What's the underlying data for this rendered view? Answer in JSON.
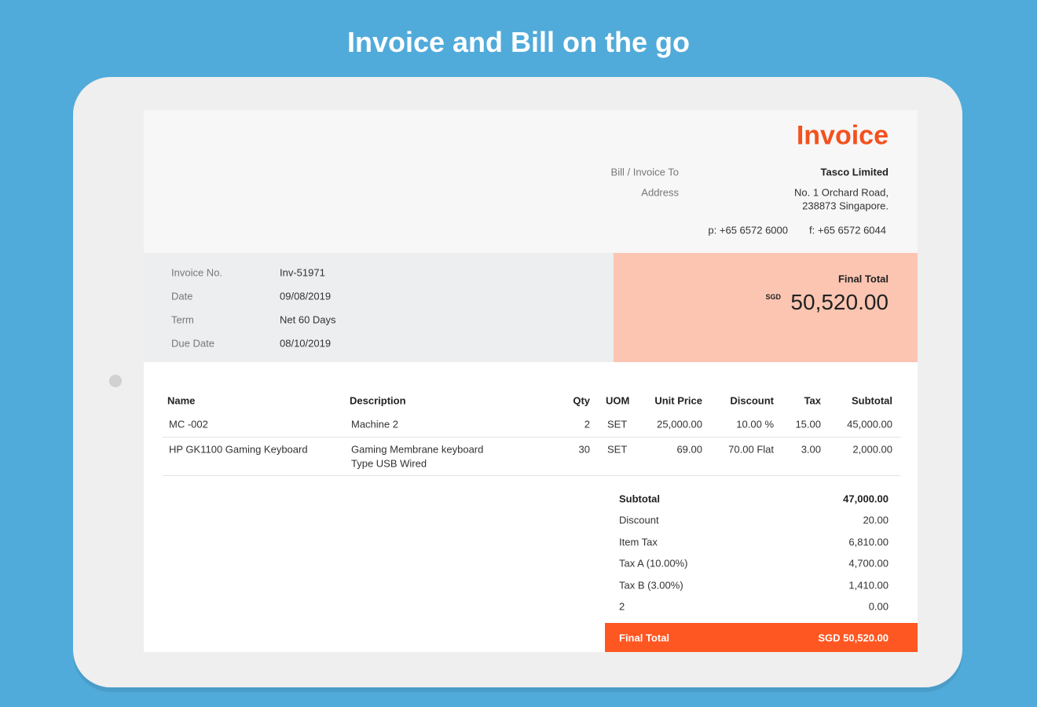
{
  "banner": "Invoice and Bill on the go",
  "invoice": {
    "title": "Invoice",
    "bill_to": {
      "label": "Bill / Invoice To",
      "value": "Tasco Limited"
    },
    "address": {
      "label": "Address",
      "lines": [
        "No. 1 Orchard Road,",
        "238873 Singapore."
      ]
    },
    "phone": "p: +65 6572 6000",
    "fax": "f: +65 6572 6044",
    "details": [
      {
        "label": "Invoice No.",
        "value": "Inv-51971"
      },
      {
        "label": "Date",
        "value": "09/08/2019"
      },
      {
        "label": "Term",
        "value": "Net 60 Days"
      },
      {
        "label": "Due Date",
        "value": "08/10/2019"
      }
    ],
    "final_total": {
      "label": "Final Total",
      "currency": "SGD",
      "amount": "50,520.00"
    },
    "items": {
      "headers": [
        "Name",
        "Description",
        "Qty",
        "UOM",
        "Unit Price",
        "Discount",
        "Tax",
        "Subtotal"
      ],
      "rows": [
        {
          "name": "MC -002",
          "description": [
            "Machine 2"
          ],
          "qty": "2",
          "uom": "SET",
          "unit_price": "25,000.00",
          "discount": "10.00 %",
          "tax": "15.00",
          "subtotal": "45,000.00"
        },
        {
          "name": "HP GK1100 Gaming Keyboard",
          "description": [
            "Gaming Membrane keyboard",
            "Type USB Wired"
          ],
          "qty": "30",
          "uom": "SET",
          "unit_price": "69.00",
          "discount": "70.00 Flat",
          "tax": "3.00",
          "subtotal": "2,000.00"
        }
      ]
    },
    "summary": [
      {
        "label": "Subtotal",
        "value": "47,000.00"
      },
      {
        "label": "Discount",
        "value": "20.00"
      },
      {
        "label": "Item Tax",
        "value": "6,810.00"
      },
      {
        "label": "Tax A (10.00%)",
        "value": "4,700.00"
      },
      {
        "label": "Tax B (3.00%)",
        "value": "1,410.00"
      },
      {
        "label": "2",
        "value": "0.00"
      }
    ],
    "footer_total": {
      "label": "Final Total",
      "value": "SGD 50,520.00"
    }
  }
}
